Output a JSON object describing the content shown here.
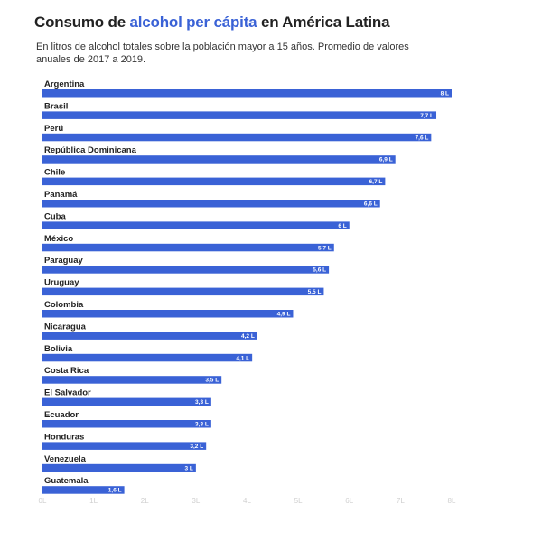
{
  "title": {
    "part1": "Consumo de ",
    "highlight": "alcohol per cápita",
    "part2": " en América Latina"
  },
  "subtitle": "En litros de alcohol totales sobre la población mayor a 15 años. Promedio de valores anuales de 2017 a 2019.",
  "colors": {
    "bar": "#3a62d6",
    "highlight": "#3a62d6",
    "text": "#222222",
    "tick": "#cfcfcf"
  },
  "chart_data": {
    "type": "bar",
    "orientation": "horizontal",
    "title": "Consumo de alcohol per cápita en América Latina",
    "xlabel": "",
    "ylabel": "",
    "xlim": [
      0,
      8
    ],
    "grid": false,
    "categories": [
      "Argentina",
      "Brasil",
      "Perú",
      "República Dominicana",
      "Chile",
      "Panamá",
      "Cuba",
      "México",
      "Paraguay",
      "Uruguay",
      "Colombia",
      "Nicaragua",
      "Bolivia",
      "Costa Rica",
      "El Salvador",
      "Ecuador",
      "Honduras",
      "Venezuela",
      "Guatemala"
    ],
    "values": [
      8,
      7.7,
      7.6,
      6.9,
      6.7,
      6.6,
      6,
      5.7,
      5.6,
      5.5,
      4.9,
      4.2,
      4.1,
      3.5,
      3.3,
      3.3,
      3.2,
      3,
      1.6
    ],
    "value_labels": [
      "8 L",
      "7,7 L",
      "7,6 L",
      "6,9 L",
      "6,7 L",
      "6,6 L",
      "6 L",
      "5,7 L",
      "5,6 L",
      "5,5 L",
      "4,9 L",
      "4,2 L",
      "4,1 L",
      "3,5 L",
      "3,3 L",
      "3,3 L",
      "3,2 L",
      "3 L",
      "1,6 L"
    ],
    "ticks": [
      0,
      1,
      2,
      3,
      4,
      5,
      6,
      7,
      8
    ],
    "tick_labels": [
      "0L",
      "1L",
      "2L",
      "3L",
      "4L",
      "5L",
      "6L",
      "7L",
      "8L"
    ]
  }
}
